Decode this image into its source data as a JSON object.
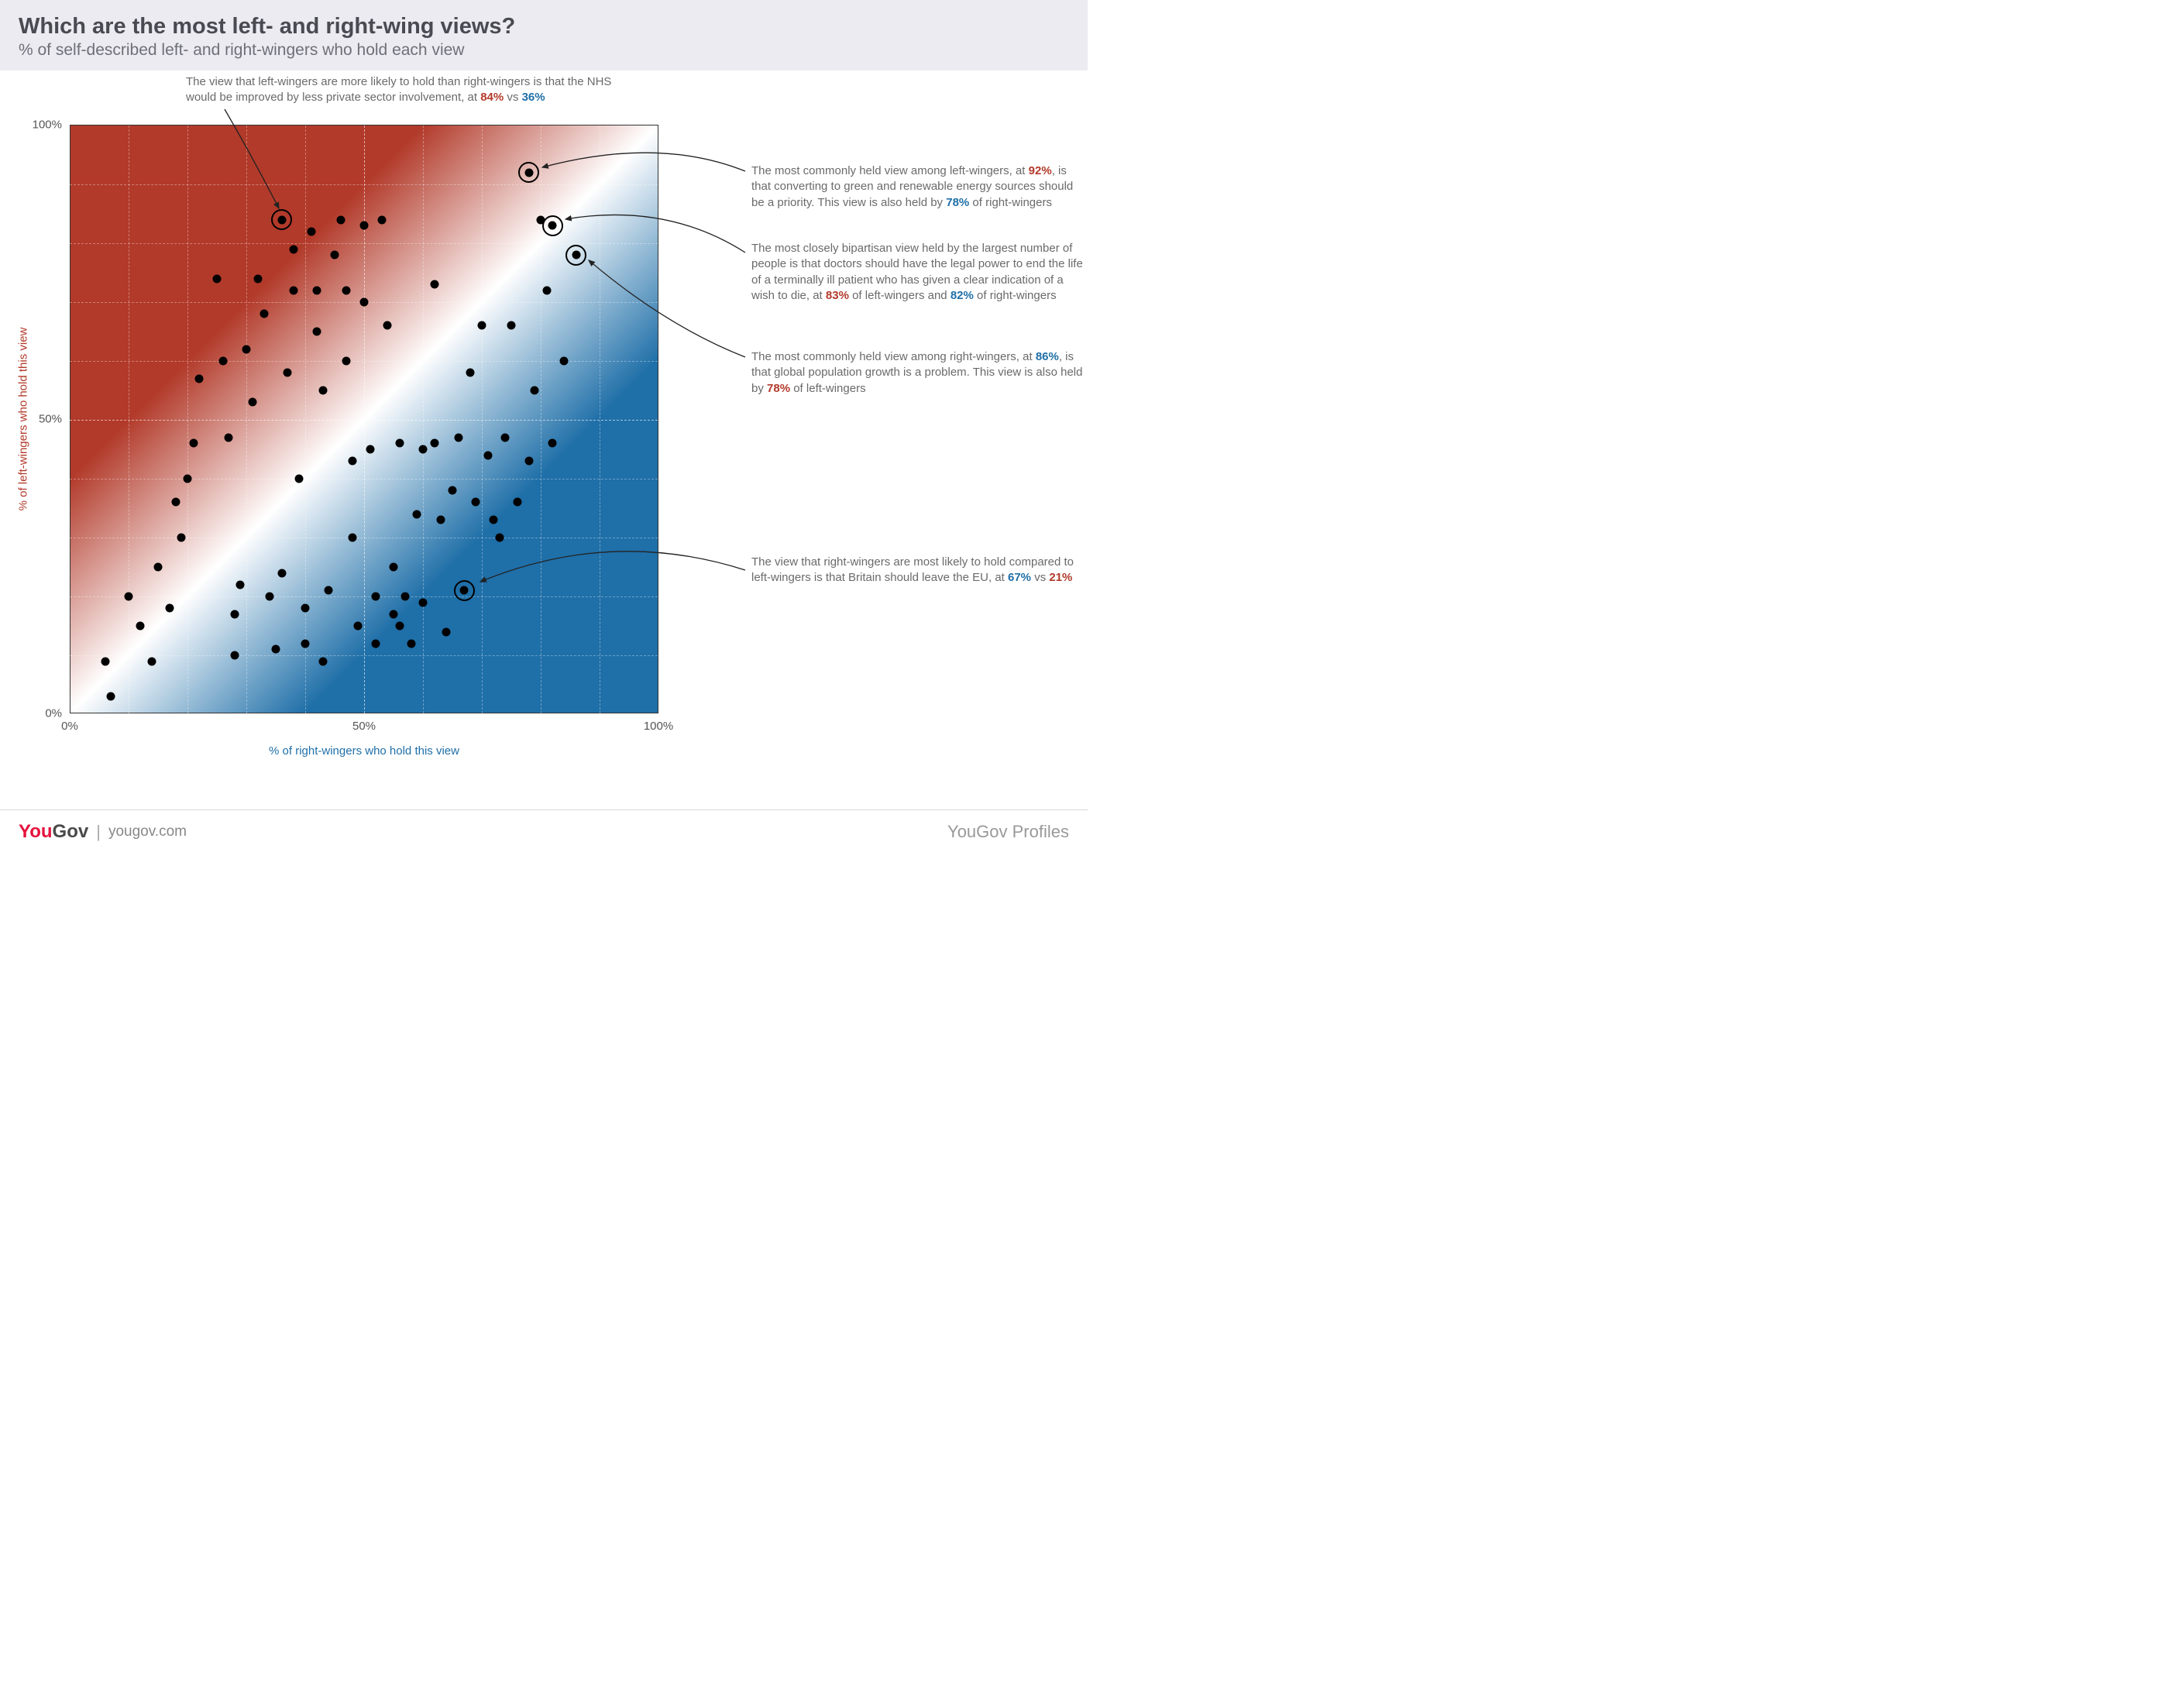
{
  "header": {
    "title": "Which are the most left- and right-wing views?",
    "subtitle": "% of self-described left- and right-wingers who hold each view"
  },
  "chart": {
    "type": "scatter",
    "xlim": [
      0,
      100
    ],
    "ylim": [
      0,
      100
    ],
    "xticks": [
      0,
      50,
      100
    ],
    "yticks": [
      0,
      50,
      100
    ],
    "xtick_labels": [
      "0%",
      "50%",
      "100%"
    ],
    "ytick_labels": [
      "0%",
      "50%",
      "100%"
    ],
    "grid_minor_step": 10,
    "x_axis_label": "% of right-wingers who hold this view",
    "y_axis_label": "% of left-wingers who hold this view",
    "x_axis_label_color": "#1f6fa8",
    "y_axis_label_color": "#b23a2a",
    "background_gradient": {
      "top_left_color": "#b23a2a",
      "mid_color": "#ffffff",
      "bottom_right_color": "#1f6fa8"
    },
    "dot_color": "#000000",
    "dot_radius": 5.5,
    "highlight_ring_radius": 11.5,
    "points": [
      {
        "x": 78,
        "y": 92,
        "hl": true
      },
      {
        "x": 82,
        "y": 83,
        "hl": true
      },
      {
        "x": 86,
        "y": 78,
        "hl": true
      },
      {
        "x": 36,
        "y": 84,
        "hl": true
      },
      {
        "x": 67,
        "y": 21,
        "hl": true
      },
      {
        "x": 6,
        "y": 9
      },
      {
        "x": 7,
        "y": 3
      },
      {
        "x": 12,
        "y": 15
      },
      {
        "x": 14,
        "y": 9
      },
      {
        "x": 10,
        "y": 20
      },
      {
        "x": 15,
        "y": 25
      },
      {
        "x": 17,
        "y": 18
      },
      {
        "x": 18,
        "y": 36
      },
      {
        "x": 19,
        "y": 30
      },
      {
        "x": 20,
        "y": 40
      },
      {
        "x": 21,
        "y": 46
      },
      {
        "x": 22,
        "y": 57
      },
      {
        "x": 25,
        "y": 74
      },
      {
        "x": 26,
        "y": 60
      },
      {
        "x": 27,
        "y": 47
      },
      {
        "x": 28,
        "y": 17
      },
      {
        "x": 28,
        "y": 10
      },
      {
        "x": 29,
        "y": 22
      },
      {
        "x": 30,
        "y": 62
      },
      {
        "x": 31,
        "y": 53
      },
      {
        "x": 32,
        "y": 74
      },
      {
        "x": 33,
        "y": 68
      },
      {
        "x": 34,
        "y": 20
      },
      {
        "x": 35,
        "y": 11
      },
      {
        "x": 36,
        "y": 24
      },
      {
        "x": 37,
        "y": 58
      },
      {
        "x": 38,
        "y": 72
      },
      {
        "x": 38,
        "y": 79
      },
      {
        "x": 39,
        "y": 40
      },
      {
        "x": 40,
        "y": 12
      },
      {
        "x": 40,
        "y": 18
      },
      {
        "x": 41,
        "y": 82
      },
      {
        "x": 42,
        "y": 72
      },
      {
        "x": 42,
        "y": 65
      },
      {
        "x": 43,
        "y": 55
      },
      {
        "x": 43,
        "y": 9
      },
      {
        "x": 44,
        "y": 21
      },
      {
        "x": 45,
        "y": 78
      },
      {
        "x": 46,
        "y": 84
      },
      {
        "x": 47,
        "y": 72
      },
      {
        "x": 47,
        "y": 60
      },
      {
        "x": 48,
        "y": 43
      },
      {
        "x": 48,
        "y": 30
      },
      {
        "x": 49,
        "y": 15
      },
      {
        "x": 50,
        "y": 83
      },
      {
        "x": 50,
        "y": 70
      },
      {
        "x": 51,
        "y": 45
      },
      {
        "x": 52,
        "y": 20
      },
      {
        "x": 52,
        "y": 12
      },
      {
        "x": 53,
        "y": 84
      },
      {
        "x": 54,
        "y": 66
      },
      {
        "x": 55,
        "y": 17
      },
      {
        "x": 55,
        "y": 25
      },
      {
        "x": 56,
        "y": 46
      },
      {
        "x": 56,
        "y": 15
      },
      {
        "x": 57,
        "y": 20
      },
      {
        "x": 58,
        "y": 12
      },
      {
        "x": 59,
        "y": 34
      },
      {
        "x": 60,
        "y": 45
      },
      {
        "x": 60,
        "y": 19
      },
      {
        "x": 62,
        "y": 73
      },
      {
        "x": 62,
        "y": 46
      },
      {
        "x": 63,
        "y": 33
      },
      {
        "x": 64,
        "y": 14
      },
      {
        "x": 65,
        "y": 38
      },
      {
        "x": 66,
        "y": 47
      },
      {
        "x": 68,
        "y": 58
      },
      {
        "x": 69,
        "y": 36
      },
      {
        "x": 70,
        "y": 66
      },
      {
        "x": 71,
        "y": 44
      },
      {
        "x": 72,
        "y": 33
      },
      {
        "x": 73,
        "y": 30
      },
      {
        "x": 74,
        "y": 47
      },
      {
        "x": 75,
        "y": 66
      },
      {
        "x": 76,
        "y": 36
      },
      {
        "x": 78,
        "y": 43
      },
      {
        "x": 79,
        "y": 55
      },
      {
        "x": 80,
        "y": 84
      },
      {
        "x": 81,
        "y": 72
      },
      {
        "x": 82,
        "y": 46
      },
      {
        "x": 84,
        "y": 60
      }
    ]
  },
  "annotations": {
    "top": {
      "text_pre": "The view that left-wingers are more likely to hold than right-wingers is that the NHS would be improved by less private sector involvement, at ",
      "val_a": "84%",
      "sep": " vs ",
      "val_b": "36%"
    },
    "a1": {
      "text_pre": "The most commonly held view among left-wingers, at ",
      "val_a": "92%",
      "mid": ", is that converting to green and renewable energy sources should be a priority. This view is also held by ",
      "val_b": "78%",
      "text_post": " of right-wingers"
    },
    "a2": {
      "text_pre": "The most closely bipartisan view held by the largest number of people is that doctors should have the legal power to end the life of a terminally ill patient who has given a clear indication of a wish to die, at ",
      "val_a": "83%",
      "mid": " of left-wingers and ",
      "val_b": "82%",
      "text_post": " of right-wingers"
    },
    "a3": {
      "text_pre": "The most commonly held view among right-wingers, at ",
      "val_a": "86%",
      "mid": ", is that global population growth is a problem. This view is also held by ",
      "val_b": "78%",
      "text_post": " of left-wingers"
    },
    "a4": {
      "text_pre": "The view that right-wingers are most likely to hold compared to left-wingers is that Britain should leave the EU, at ",
      "val_a": "67%",
      "sep": " vs ",
      "val_b": "21%"
    }
  },
  "footer": {
    "logo_you": "You",
    "logo_gov": "Gov",
    "url": "yougov.com",
    "profiles": "YouGov Profiles"
  },
  "colors": {
    "red": "#b23a2a",
    "blue": "#1f6fa8"
  }
}
